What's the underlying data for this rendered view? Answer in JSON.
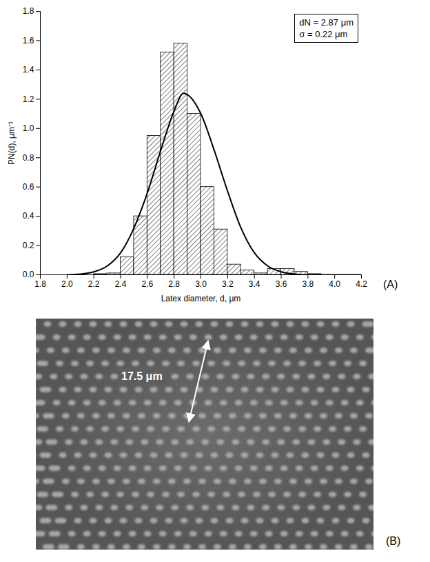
{
  "chart_data": {
    "type": "histogram",
    "panel_label": "(A)",
    "x_label": "Latex diameter, d, μm",
    "y_label": "PN(d), μm⁻¹",
    "annotations": [
      "dN = 2.87 μm",
      "σ = 0.22 μm"
    ],
    "bins": [
      2.2,
      2.3,
      2.4,
      2.5,
      2.6,
      2.7,
      2.8,
      2.9,
      3.0,
      3.1,
      3.2,
      3.3,
      3.4,
      3.5,
      3.6,
      3.7,
      3.8,
      3.9,
      4.0
    ],
    "values": [
      0.005,
      0.01,
      0.12,
      0.4,
      0.95,
      1.52,
      1.58,
      1.1,
      0.6,
      0.31,
      0.07,
      0.03,
      0.01,
      0.04,
      0.04,
      0.02,
      0.005,
      0.0
    ],
    "color": "#000000",
    "line": {
      "type": "line",
      "color": "#000000",
      "x": [
        2.0,
        2.1,
        2.2,
        2.3,
        2.4,
        2.5,
        2.6,
        2.7,
        2.8,
        2.87,
        2.9,
        3.0,
        3.1,
        3.2,
        3.3,
        3.4,
        3.5,
        3.6,
        3.7,
        3.8,
        3.9,
        4.0,
        4.1,
        4.2
      ],
      "values": [
        0.0,
        0.005,
        0.02,
        0.06,
        0.15,
        0.32,
        0.56,
        0.85,
        1.12,
        1.24,
        1.23,
        1.1,
        0.85,
        0.57,
        0.32,
        0.15,
        0.06,
        0.02,
        0.005,
        0.0,
        0.0,
        0.0,
        0.0,
        0.0
      ]
    },
    "xlim": [
      1.8,
      4.2
    ],
    "xticks": [
      1.8,
      {
        "value": 2.0,
        "label": "2.0"
      },
      2.2,
      2.4,
      2.6,
      2.8,
      {
        "value": 3.0,
        "label": "3.0"
      },
      3.2,
      3.4,
      3.6,
      3.8,
      {
        "value": 4.0,
        "label": "4.0"
      },
      4.2
    ],
    "ylim": [
      0,
      1.8
    ],
    "yticks": [
      {
        "value": 0,
        "label": "0.0"
      },
      0.2,
      0.4,
      0.6,
      0.8,
      {
        "value": 1.0,
        "label": "1.0"
      },
      1.2,
      1.4,
      1.6,
      1.8
    ],
    "grid": false
  },
  "image": {
    "panel_label": "(B)",
    "scale_bar": {
      "label": "17.5 μm"
    }
  }
}
